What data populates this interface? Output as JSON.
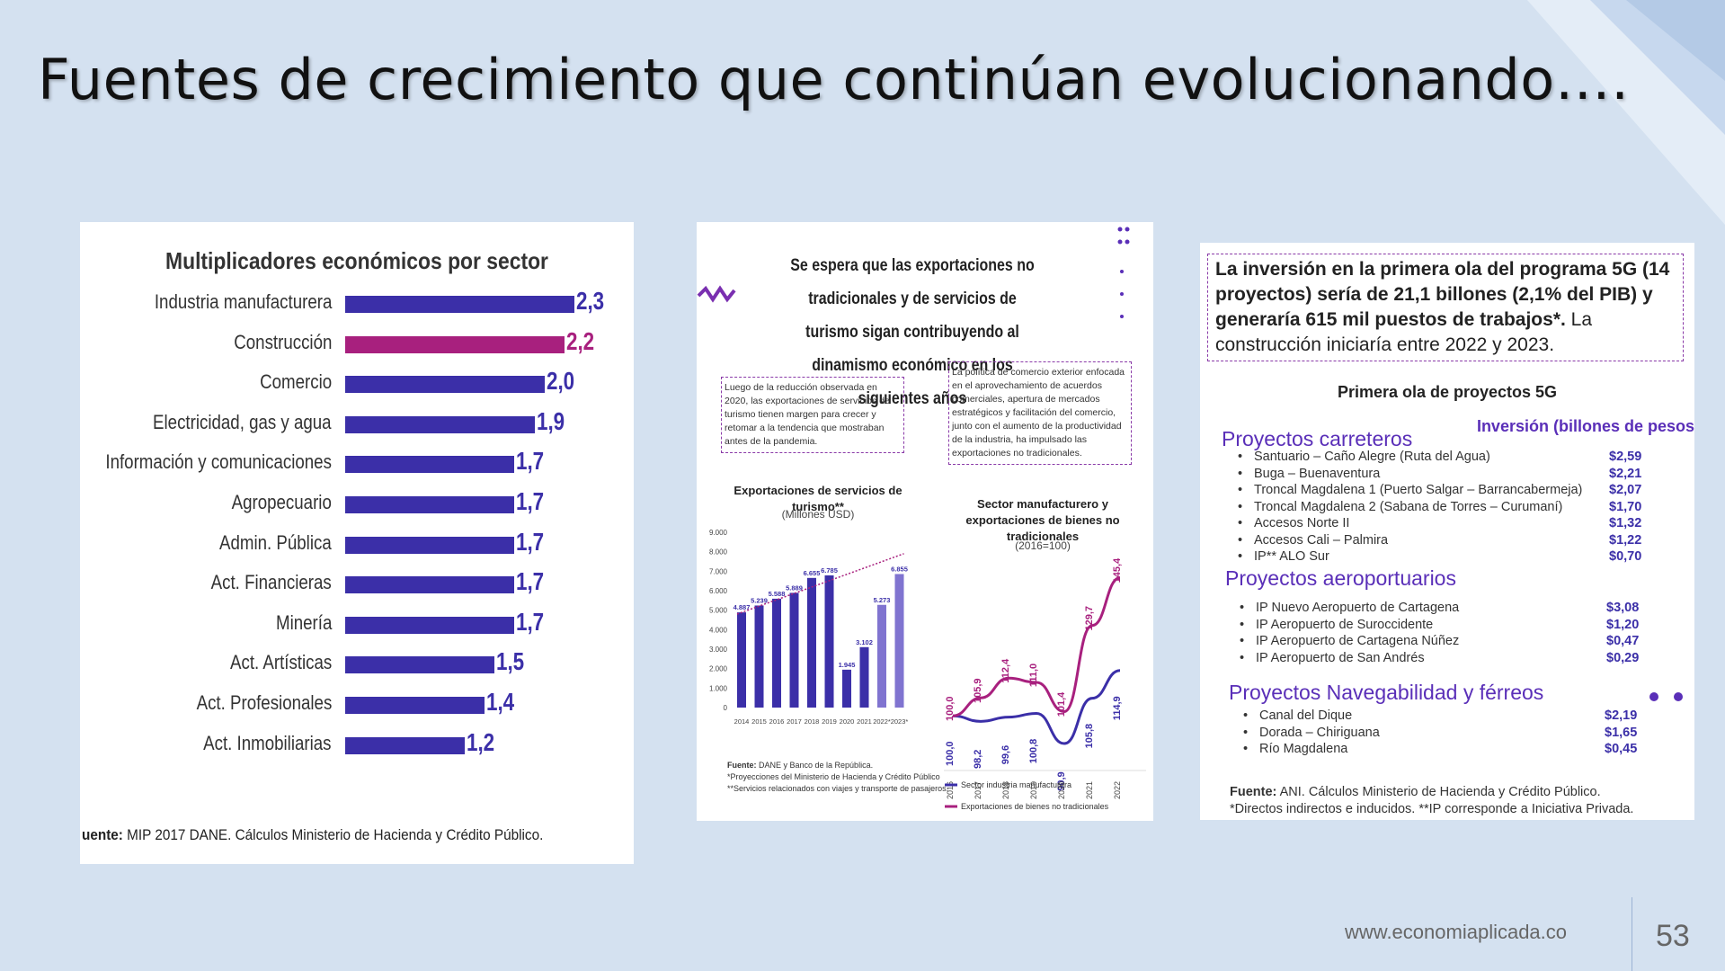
{
  "slide": {
    "title": "Fuentes de crecimiento que continúan evolucionando….",
    "website": "www.economiaplicada.co",
    "page_number": "53"
  },
  "panels": {
    "multiplicadores": {
      "chart_data": {
        "type": "bar",
        "title": "Multiplicadores económicos por sector",
        "categories": [
          "Industria manufacturera",
          "Construcción",
          "Comercio",
          "Electricidad, gas y agua",
          "Información y comunicaciones",
          "Agropecuario",
          "Admin. Pública",
          "Act. Financieras",
          "Minería",
          "Act. Artísticas",
          "Act. Profesionales",
          "Act. Inmobiliarias"
        ],
        "values": [
          2.3,
          2.2,
          2.0,
          1.9,
          1.7,
          1.7,
          1.7,
          1.7,
          1.7,
          1.5,
          1.4,
          1.2
        ],
        "value_labels": [
          "2,3",
          "2,2",
          "2,0",
          "1,9",
          "1,7",
          "1,7",
          "1,7",
          "1,7",
          "1,7",
          "1,5",
          "1,4",
          "1,2"
        ],
        "highlight_index": 1,
        "colors": {
          "bar": "#3b2fa8",
          "highlight": "#a8207e"
        }
      },
      "source_label": "uente:",
      "source_text": " MIP 2017 DANE. Cálculos Ministerio de Hacienda y Crédito Público."
    },
    "exportaciones": {
      "heading": "Se espera que las exportaciones no tradicionales y de servicios de turismo sigan contribuyendo al dinamismo económico en los siguientes años",
      "box_left": "Luego de la reducción observada en 2020, las exportaciones de servicios de turismo tienen margen para crecer y retomar a la tendencia que mostraban antes de la pandemia.",
      "box_right": "La política de comercio exterior enfocada en el aprovechamiento de acuerdos comerciales, apertura de mercados estratégicos y facilitación del comercio, junto con el aumento de la productividad de la industria, ha impulsado las exportaciones no tradicionales.",
      "turismo_chart": {
        "chart_data": {
          "type": "bar",
          "title": "Exportaciones de servicios de turismo**",
          "units": "(Millones USD)",
          "categories": [
            "2014",
            "2015",
            "2016",
            "2017",
            "2018",
            "2019",
            "2020",
            "2021",
            "2022*",
            "2023*"
          ],
          "values": [
            4887,
            5239,
            5588,
            5889,
            6655,
            6785,
            1945,
            3102,
            5273,
            6855
          ],
          "value_labels": [
            "4.887",
            "5.239",
            "5.588",
            "5.889",
            "6.655",
            "6.785",
            "1.945",
            "3.102",
            "5.273",
            "6.855"
          ],
          "y_ticks": [
            "9.000",
            "8.000",
            "7.000",
            "6.000",
            "5.000",
            "4.000",
            "3.000",
            "2.000",
            "1.000",
            "0"
          ],
          "ylim": [
            0,
            9000
          ]
        }
      },
      "industria_chart": {
        "chart_data": {
          "type": "line",
          "title": "Sector manufacturero y exportaciones de bienes no tradicionales",
          "units": "(2016=100)",
          "x": [
            "2016",
            "2017",
            "2018",
            "2019",
            "2020",
            "2021",
            "2022"
          ],
          "series": [
            {
              "name": "Sector industria manufacturera",
              "values": [
                100.0,
                98.2,
                99.6,
                100.8,
                90.9,
                105.8,
                114.9
              ],
              "labels": [
                "100,0",
                "98,2",
                "99,6",
                "100,8",
                "90,9",
                "105,8",
                "114,9"
              ],
              "color": "#3b2fa8"
            },
            {
              "name": "Exportaciones de bienes no tradicionales",
              "values": [
                100.0,
                105.9,
                112.4,
                111.0,
                101.4,
                129.7,
                145.4
              ],
              "labels": [
                "100,0",
                "105,9",
                "112,4",
                "111,0",
                "101,4",
                "129,7",
                "145,4"
              ],
              "color": "#a8207e"
            }
          ]
        }
      },
      "footnotes": {
        "source_label": "Fuente:",
        "source_text": " DANE y Banco de la República.",
        "note1": "*Proyecciones del Ministerio de Hacienda y Crédito Público",
        "note2": "**Servicios relacionados con viajes y transporte de pasajeros."
      }
    },
    "proyectos_5g": {
      "intro_bold": "La inversión en la primera ola del programa 5G (14 proyectos) sería de 21,1 billones (2,1% del PIB) y generaría 615 mil puestos de trabajos*.",
      "intro_normal": " La construcción iniciaría entre 2022 y 2023.",
      "subtitle": "Primera ola de proyectos 5G",
      "investment_header": "Inversión (billones de pesos",
      "groups": [
        {
          "name": "Proyectos carreteros",
          "items": [
            {
              "name": "Santuario – Caño Alegre (Ruta del Agua)",
              "amount": "$2,59"
            },
            {
              "name": "Buga – Buenaventura",
              "amount": "$2,21"
            },
            {
              "name": "Troncal Magdalena 1 (Puerto Salgar – Barrancabermeja)",
              "amount": "$2,07"
            },
            {
              "name": "Troncal Magdalena 2 (Sabana de Torres – Curumaní)",
              "amount": "$1,70"
            },
            {
              "name": "Accesos Norte II",
              "amount": "$1,32"
            },
            {
              "name": "Accesos Cali – Palmira",
              "amount": "$1,22"
            },
            {
              "name": "IP** ALO Sur",
              "amount": "$0,70"
            }
          ]
        },
        {
          "name": "Proyectos aeroportuarios",
          "items": [
            {
              "name": "IP Nuevo Aeropuerto de Cartagena",
              "amount": "$3,08"
            },
            {
              "name": "IP Aeropuerto de Suroccidente",
              "amount": "$1,20"
            },
            {
              "name": "IP Aeropuerto de Cartagena Núñez",
              "amount": "$0,47"
            },
            {
              "name": "IP Aeropuerto de San Andrés",
              "amount": "$0,29"
            }
          ]
        },
        {
          "name": "Proyectos Navegabilidad y férreos",
          "items": [
            {
              "name": "Canal del Dique",
              "amount": "$2,19"
            },
            {
              "name": "Dorada – Chiriguana",
              "amount": "$1,65"
            },
            {
              "name": "Río Magdalena",
              "amount": "$0,45"
            }
          ]
        }
      ],
      "source_label": "Fuente:",
      "source_text": " ANI. Cálculos Ministerio de Hacienda y Crédito Público.",
      "footnote": "*Directos indirectos e inducidos. **IP corresponde a Iniciativa Privada."
    }
  }
}
